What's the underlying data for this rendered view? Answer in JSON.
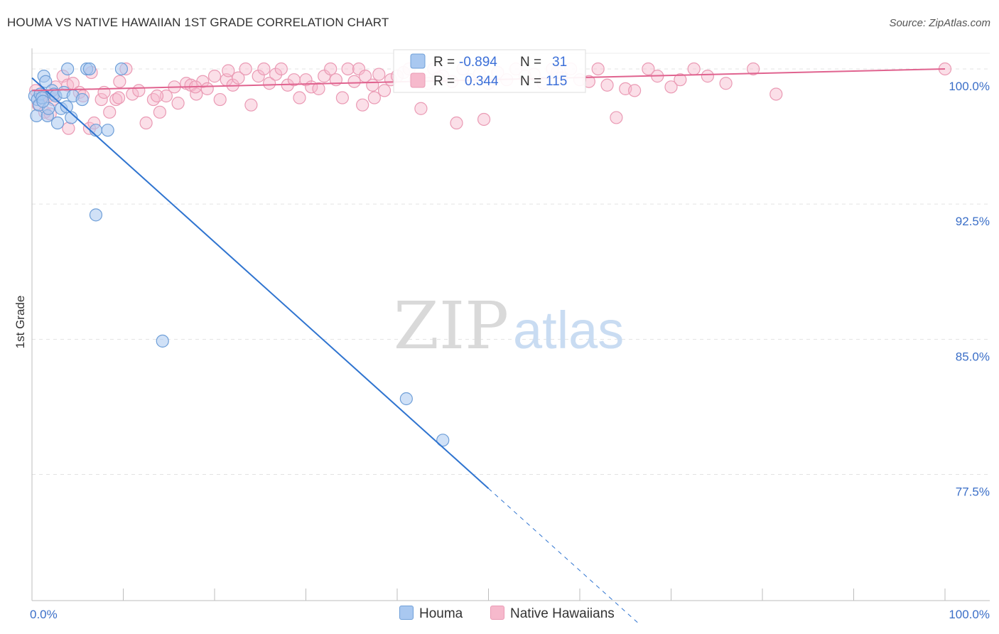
{
  "title": "HOUMA VS NATIVE HAWAIIAN 1ST GRADE CORRELATION CHART",
  "source": "Source: ZipAtlas.com",
  "watermark": {
    "zip": "ZIP",
    "atlas": "atlas"
  },
  "chart_data": {
    "type": "scatter",
    "title": "HOUMA VS NATIVE HAWAIIAN 1ST GRADE CORRELATION CHART",
    "xlabel": "",
    "ylabel": "1st Grade",
    "xlim": [
      0,
      100
    ],
    "ylim": [
      70.5,
      101.3
    ],
    "x_tick_labels": {
      "min": "0.0%",
      "max": "100.0%"
    },
    "y_ticks": [
      {
        "value": 100.0,
        "label": "100.0%"
      },
      {
        "value": 92.5,
        "label": "92.5%"
      },
      {
        "value": 85.0,
        "label": "85.0%"
      },
      {
        "value": 77.5,
        "label": "77.5%"
      }
    ],
    "colors": {
      "houma_fill": "#a9c8f0",
      "houma_stroke": "#6f9fd8",
      "houma_line": "#2f74d0",
      "nh_fill": "#f6b9cc",
      "nh_stroke": "#ea9ab4",
      "nh_line": "#e0638f",
      "r_value_color": "#3b6fd8",
      "axis_label_color": "#3b6fc8"
    },
    "stats": [
      {
        "r_label": "R =",
        "r": "-0.894",
        "n_label": "N =",
        "n": "31"
      },
      {
        "r_label": "R =",
        "r": "0.344",
        "n_label": "N =",
        "n": "115"
      }
    ],
    "series": [
      {
        "name": "Houma",
        "points": [
          [
            0.3,
            98.5
          ],
          [
            0.5,
            97.4
          ],
          [
            0.6,
            98.3
          ],
          [
            0.8,
            98.0
          ],
          [
            0.9,
            98.6
          ],
          [
            1.1,
            98.4
          ],
          [
            1.3,
            99.6
          ],
          [
            1.5,
            99.3
          ],
          [
            1.7,
            97.4
          ],
          [
            1.8,
            97.8
          ],
          [
            2.2,
            98.8
          ],
          [
            2.4,
            98.6
          ],
          [
            2.6,
            98.5
          ],
          [
            2.8,
            97.0
          ],
          [
            3.2,
            97.8
          ],
          [
            3.5,
            98.7
          ],
          [
            3.8,
            97.9
          ],
          [
            4.3,
            97.3
          ],
          [
            4.5,
            98.5
          ],
          [
            5.5,
            98.3
          ],
          [
            6.0,
            100.0
          ],
          [
            6.3,
            100.0
          ],
          [
            7.0,
            96.6
          ],
          [
            8.3,
            96.6
          ],
          [
            9.8,
            100.0
          ],
          [
            3.9,
            100.0
          ],
          [
            7.0,
            91.9
          ],
          [
            14.3,
            84.9
          ],
          [
            41.0,
            81.7
          ],
          [
            45.0,
            79.4
          ],
          [
            1.2,
            98.2
          ]
        ],
        "trend": {
          "x_start": 0,
          "y_start": 99.5,
          "x_solid_end": 50,
          "x_end": 66.5
        }
      },
      {
        "name": "Native Hawaiians",
        "points": [
          [
            0.4,
            98.8
          ],
          [
            0.7,
            98.0
          ],
          [
            1.0,
            98.5
          ],
          [
            1.4,
            97.6
          ],
          [
            1.8,
            98.5
          ],
          [
            2.3,
            98.3
          ],
          [
            2.6,
            99.0
          ],
          [
            3.4,
            99.6
          ],
          [
            3.9,
            99.1
          ],
          [
            4.5,
            99.2
          ],
          [
            5.2,
            98.7
          ],
          [
            5.6,
            98.5
          ],
          [
            6.3,
            96.7
          ],
          [
            6.8,
            97.0
          ],
          [
            7.6,
            98.3
          ],
          [
            7.9,
            98.7
          ],
          [
            8.5,
            97.6
          ],
          [
            9.2,
            98.3
          ],
          [
            9.6,
            99.3
          ],
          [
            10.3,
            100.0
          ],
          [
            11.0,
            98.6
          ],
          [
            11.7,
            98.8
          ],
          [
            12.5,
            97.0
          ],
          [
            13.3,
            98.3
          ],
          [
            14.0,
            97.6
          ],
          [
            14.7,
            98.5
          ],
          [
            15.6,
            99.0
          ],
          [
            16.0,
            98.1
          ],
          [
            16.9,
            99.2
          ],
          [
            17.4,
            99.1
          ],
          [
            18.0,
            98.6
          ],
          [
            18.7,
            99.3
          ],
          [
            19.2,
            98.9
          ],
          [
            20.0,
            99.6
          ],
          [
            20.6,
            98.3
          ],
          [
            21.3,
            99.4
          ],
          [
            22.0,
            99.1
          ],
          [
            22.6,
            99.5
          ],
          [
            23.4,
            100.0
          ],
          [
            24.0,
            98.0
          ],
          [
            24.8,
            99.6
          ],
          [
            25.4,
            100.0
          ],
          [
            26.0,
            99.2
          ],
          [
            26.7,
            99.7
          ],
          [
            27.3,
            100.0
          ],
          [
            28.0,
            99.1
          ],
          [
            28.7,
            99.4
          ],
          [
            29.3,
            98.4
          ],
          [
            30.0,
            99.4
          ],
          [
            30.6,
            99.0
          ],
          [
            31.4,
            98.9
          ],
          [
            32.0,
            99.6
          ],
          [
            32.7,
            100.0
          ],
          [
            33.3,
            99.4
          ],
          [
            34.0,
            98.4
          ],
          [
            34.6,
            100.0
          ],
          [
            35.3,
            99.3
          ],
          [
            35.8,
            100.0
          ],
          [
            36.5,
            99.6
          ],
          [
            37.3,
            99.1
          ],
          [
            38.0,
            99.7
          ],
          [
            38.6,
            98.8
          ],
          [
            39.3,
            99.4
          ],
          [
            40.0,
            99.6
          ],
          [
            40.7,
            99.8
          ],
          [
            41.3,
            100.0
          ],
          [
            42.0,
            99.4
          ],
          [
            42.6,
            97.8
          ],
          [
            43.4,
            99.2
          ],
          [
            44.0,
            100.0
          ],
          [
            45.0,
            99.6
          ],
          [
            46.0,
            99.3
          ],
          [
            46.5,
            97.0
          ],
          [
            47.2,
            100.0
          ],
          [
            48.0,
            99.4
          ],
          [
            49.0,
            99.7
          ],
          [
            50.0,
            99.2
          ],
          [
            51.0,
            99.8
          ],
          [
            52.0,
            99.4
          ],
          [
            53.0,
            100.0
          ],
          [
            54.0,
            99.6
          ],
          [
            55.0,
            99.7
          ],
          [
            56.0,
            99.2
          ],
          [
            57.0,
            100.0
          ],
          [
            58.0,
            99.5
          ],
          [
            59.0,
            100.0
          ],
          [
            60.0,
            99.4
          ],
          [
            61.0,
            99.3
          ],
          [
            62.0,
            100.0
          ],
          [
            63.0,
            99.1
          ],
          [
            64.0,
            97.3
          ],
          [
            65.0,
            98.9
          ],
          [
            66.0,
            98.8
          ],
          [
            67.5,
            100.0
          ],
          [
            68.5,
            99.6
          ],
          [
            70.0,
            99.0
          ],
          [
            72.5,
            100.0
          ],
          [
            74.0,
            99.6
          ],
          [
            76.0,
            99.2
          ],
          [
            79.0,
            100.0
          ],
          [
            81.5,
            98.6
          ],
          [
            100.0,
            100.0
          ],
          [
            4.0,
            96.7
          ],
          [
            9.5,
            98.4
          ],
          [
            13.7,
            98.5
          ],
          [
            37.5,
            98.4
          ],
          [
            36.2,
            98.0
          ],
          [
            44.5,
            99.5
          ],
          [
            57.5,
            99.8
          ],
          [
            49.5,
            97.2
          ],
          [
            71.0,
            99.4
          ],
          [
            21.5,
            99.9
          ],
          [
            2.0,
            97.5
          ],
          [
            6.5,
            99.8
          ],
          [
            17.9,
            99.0
          ]
        ],
        "trend": {
          "x_start": 0,
          "y_start": 98.8,
          "x_end": 100,
          "y_end": 100.0
        }
      }
    ]
  }
}
